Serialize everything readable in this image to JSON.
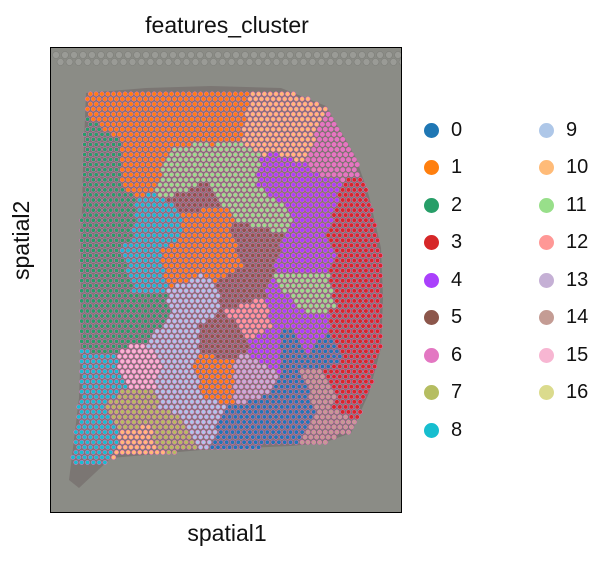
{
  "chart_data": {
    "type": "scatter",
    "title": "features_cluster",
    "xlabel": "spatial1",
    "ylabel": "spatial2",
    "legend_position": "right",
    "legend_columns": 2,
    "background": "tissue histology image (gray)",
    "spot_outline_color": "#ff69c8",
    "series": [
      {
        "name": "0",
        "color": "#1f77b4"
      },
      {
        "name": "1",
        "color": "#ff7f0e"
      },
      {
        "name": "2",
        "color": "#279e68"
      },
      {
        "name": "3",
        "color": "#d62728"
      },
      {
        "name": "4",
        "color": "#aa40fc"
      },
      {
        "name": "5",
        "color": "#8c564b"
      },
      {
        "name": "6",
        "color": "#e377c2"
      },
      {
        "name": "7",
        "color": "#b5bd61"
      },
      {
        "name": "8",
        "color": "#17becf"
      },
      {
        "name": "9",
        "color": "#aec7e8"
      },
      {
        "name": "10",
        "color": "#ffbb78"
      },
      {
        "name": "11",
        "color": "#98df8a"
      },
      {
        "name": "12",
        "color": "#ff9896"
      },
      {
        "name": "13",
        "color": "#c5b0d5"
      },
      {
        "name": "14",
        "color": "#c49c94"
      },
      {
        "name": "15",
        "color": "#f7b6d2"
      },
      {
        "name": "16",
        "color": "#dbdb8d"
      }
    ]
  }
}
